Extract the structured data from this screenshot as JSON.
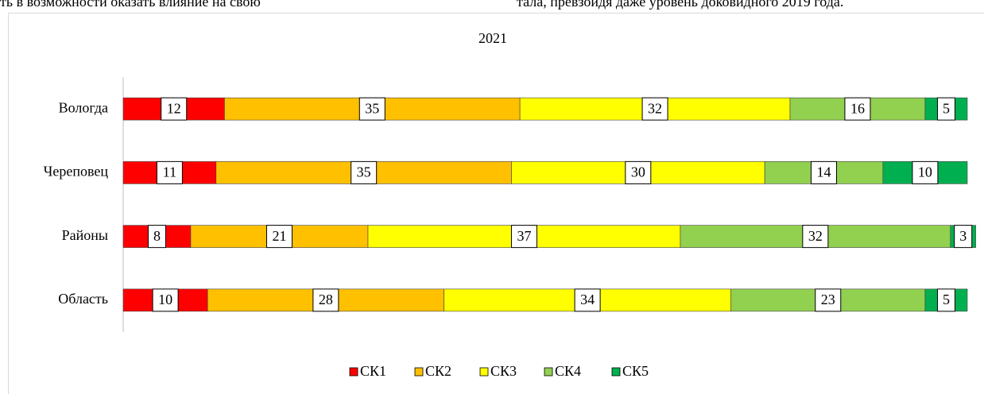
{
  "header_text": [
    "ть в возможности оказать влияние на свою",
    "тала, превзойдя даже уровень доковидного 2019 года."
  ],
  "chart_data": {
    "type": "stacked_barh",
    "title": "2021",
    "categories": [
      "Вологда",
      "Череповец",
      "Районы",
      "Область"
    ],
    "series": [
      {
        "name": "СК1",
        "color": "#ff0000",
        "values": [
          12,
          11,
          8,
          10
        ]
      },
      {
        "name": "СК2",
        "color": "#ffc000",
        "values": [
          35,
          35,
          21,
          28
        ]
      },
      {
        "name": "СК3",
        "color": "#ffff00",
        "values": [
          32,
          30,
          37,
          34
        ]
      },
      {
        "name": "СК4",
        "color": "#92d050",
        "values": [
          16,
          14,
          32,
          23
        ]
      },
      {
        "name": "СК5",
        "color": "#00b050",
        "values": [
          5,
          10,
          3,
          5
        ]
      }
    ],
    "legend": "bottom"
  }
}
